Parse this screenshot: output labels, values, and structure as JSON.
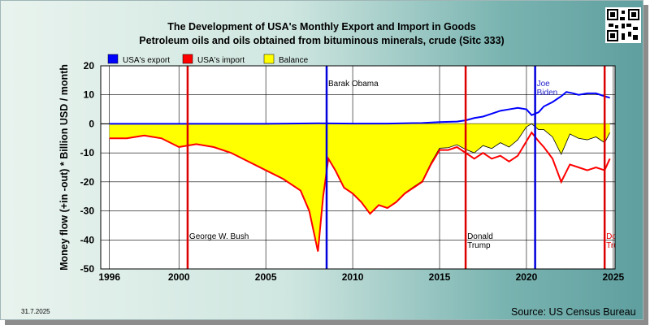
{
  "header": {
    "title": "The Development of USA's Monthly Export and Import in Goods",
    "subtitle": "Petroleum oils and oils obtained from bituminous minerals, crude (Sitc 333)"
  },
  "footer": {
    "date": "31.7.2025",
    "source": "Source: US Census Bureau"
  },
  "colors": {
    "export": "#0000ff",
    "import": "#ff0000",
    "balance": "#ffff00",
    "president_republican": "#dd0000",
    "president_democrat": "#0000dd"
  },
  "chart_data": {
    "type": "line",
    "xlabel": "",
    "ylabel": "Money flow (+in -out) * Billion USD / month",
    "xlim": [
      1995.5,
      2025.1
    ],
    "ylim": [
      -50,
      20
    ],
    "x_ticks": [
      1996,
      2000,
      2005,
      2010,
      2015,
      2020,
      2025
    ],
    "y_ticks": [
      20,
      10,
      0,
      -10,
      -20,
      -30,
      -40,
      -50
    ],
    "grid": true,
    "legend": {
      "placement": "top-left",
      "entries": [
        {
          "label": "USA's export",
          "color": "#0000ff"
        },
        {
          "label": "USA's import",
          "color": "#ff0000"
        },
        {
          "label": "Balance",
          "color": "#ffff00"
        }
      ]
    },
    "series": [
      {
        "name": "USA's export",
        "x": [
          1996,
          2000,
          2005,
          2008,
          2010,
          2012,
          2014,
          2015,
          2016,
          2016.5,
          2017,
          2017.5,
          2018,
          2018.5,
          2019,
          2019.5,
          2020,
          2020.3,
          2020.7,
          2021,
          2021.5,
          2022,
          2022.3,
          2022.7,
          2023,
          2023.5,
          2024,
          2024.5,
          2024.8
        ],
        "values": [
          0,
          0,
          0,
          0.2,
          0.1,
          0.1,
          0.3,
          0.6,
          0.8,
          1.2,
          2.0,
          2.5,
          3.5,
          4.5,
          5.0,
          5.5,
          5.0,
          3.0,
          4.0,
          6.0,
          7.5,
          9.5,
          11.0,
          10.5,
          10.0,
          10.5,
          10.5,
          9.5,
          9.0
        ]
      },
      {
        "name": "USA's import",
        "x": [
          1996,
          1997,
          1998,
          1999,
          2000,
          2001,
          2002,
          2003,
          2004,
          2005,
          2006,
          2007,
          2007.5,
          2008,
          2008.3,
          2008.6,
          2009,
          2009.5,
          2010,
          2010.5,
          2011,
          2011.5,
          2012,
          2012.5,
          2013,
          2013.5,
          2014,
          2014.5,
          2015,
          2015.5,
          2016,
          2016.5,
          2017,
          2017.5,
          2018,
          2018.5,
          2019,
          2019.5,
          2020,
          2020.3,
          2020.7,
          2021,
          2021.5,
          2022,
          2022.5,
          2023,
          2023.5,
          2024,
          2024.5,
          2024.8
        ],
        "values": [
          -5,
          -5,
          -4,
          -5,
          -8,
          -7,
          -8,
          -10,
          -13,
          -16,
          -19,
          -23,
          -30,
          -44,
          -25,
          -12,
          -16,
          -22,
          -24,
          -27,
          -31,
          -28,
          -29,
          -27,
          -24,
          -22,
          -20,
          -14,
          -9,
          -9,
          -8,
          -10,
          -12,
          -10,
          -12,
          -11,
          -13,
          -11,
          -6,
          -3,
          -6,
          -8,
          -12,
          -20,
          -14,
          -15,
          -16,
          -15,
          -16,
          -12
        ]
      },
      {
        "name": "Balance",
        "x": [
          1996,
          1997,
          1998,
          1999,
          2000,
          2001,
          2002,
          2003,
          2004,
          2005,
          2006,
          2007,
          2007.5,
          2008,
          2008.3,
          2008.6,
          2009,
          2009.5,
          2010,
          2010.5,
          2011,
          2011.5,
          2012,
          2012.5,
          2013,
          2013.5,
          2014,
          2014.5,
          2015,
          2015.5,
          2016,
          2016.5,
          2017,
          2017.5,
          2018,
          2018.5,
          2019,
          2019.5,
          2020,
          2020.3,
          2020.7,
          2021,
          2021.5,
          2022,
          2022.5,
          2023,
          2023.5,
          2024,
          2024.5,
          2024.8
        ],
        "values": [
          -5,
          -5,
          -4,
          -5,
          -8,
          -7,
          -8,
          -10,
          -13,
          -16,
          -19,
          -23,
          -30,
          -43.8,
          -24.8,
          -11.8,
          -15.9,
          -21.9,
          -23.9,
          -26.9,
          -30.9,
          -27.9,
          -28.9,
          -26.8,
          -23.8,
          -21.7,
          -19.7,
          -13.5,
          -8.4,
          -8.2,
          -7.2,
          -8.8,
          -10.0,
          -7.5,
          -8.5,
          -6.5,
          -8.0,
          -5.5,
          -1.0,
          0,
          -2.0,
          -2.0,
          -4.5,
          -10.5,
          -3.5,
          -5.0,
          -5.5,
          -4.5,
          -6.5,
          -3.0
        ]
      }
    ],
    "annotations": [
      {
        "label": "George W. Bush",
        "x": 2000.5,
        "party": "republican",
        "label_pos": "bottom"
      },
      {
        "label": "Barak Obama",
        "x": 2008.5,
        "party": "democrat",
        "label_pos": "top"
      },
      {
        "label": "Donald Trump",
        "x": 2016.5,
        "party": "republican",
        "label_pos": "bottom"
      },
      {
        "label": "Joe Biden",
        "x": 2020.5,
        "party": "democrat",
        "label_pos": "top"
      },
      {
        "label": "Donald Trump",
        "x": 2024.5,
        "party": "republican",
        "label_pos": "bottom"
      }
    ]
  }
}
